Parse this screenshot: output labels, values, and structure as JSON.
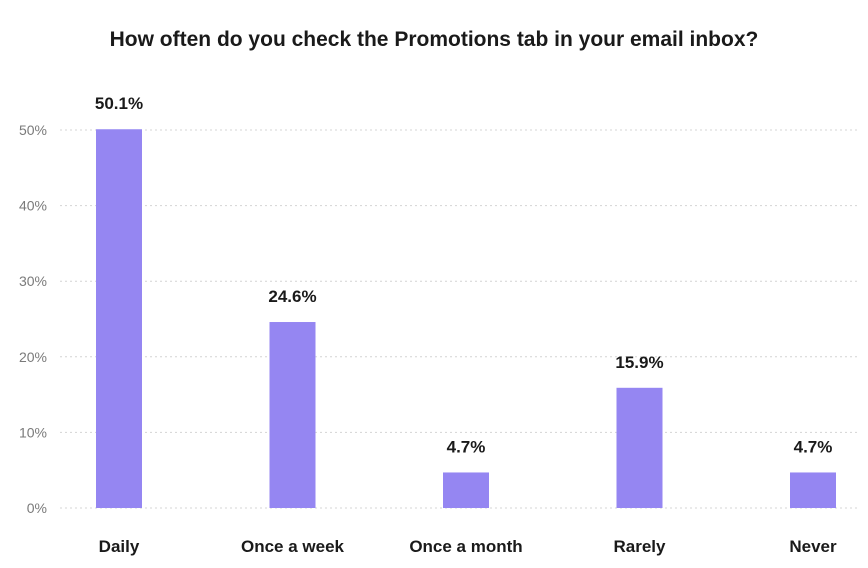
{
  "chart_data": {
    "type": "bar",
    "title": "How often do you check the Promotions tab in your email inbox?",
    "categories": [
      "Daily",
      "Once a week",
      "Once a month",
      "Rarely",
      "Never"
    ],
    "values": [
      50.1,
      24.6,
      4.7,
      15.9,
      4.7
    ],
    "value_labels": [
      "50.1%",
      "24.6%",
      "4.7%",
      "15.9%",
      "4.7%"
    ],
    "y_ticks": [
      0,
      10,
      20,
      30,
      40,
      50
    ],
    "y_tick_labels": [
      "0%",
      "10%",
      "20%",
      "30%",
      "40%",
      "50%"
    ],
    "ylim": [
      0,
      50
    ],
    "xlabel": "",
    "ylabel": "",
    "grid": true,
    "legend": "none",
    "bar_color": "#9586f2"
  }
}
